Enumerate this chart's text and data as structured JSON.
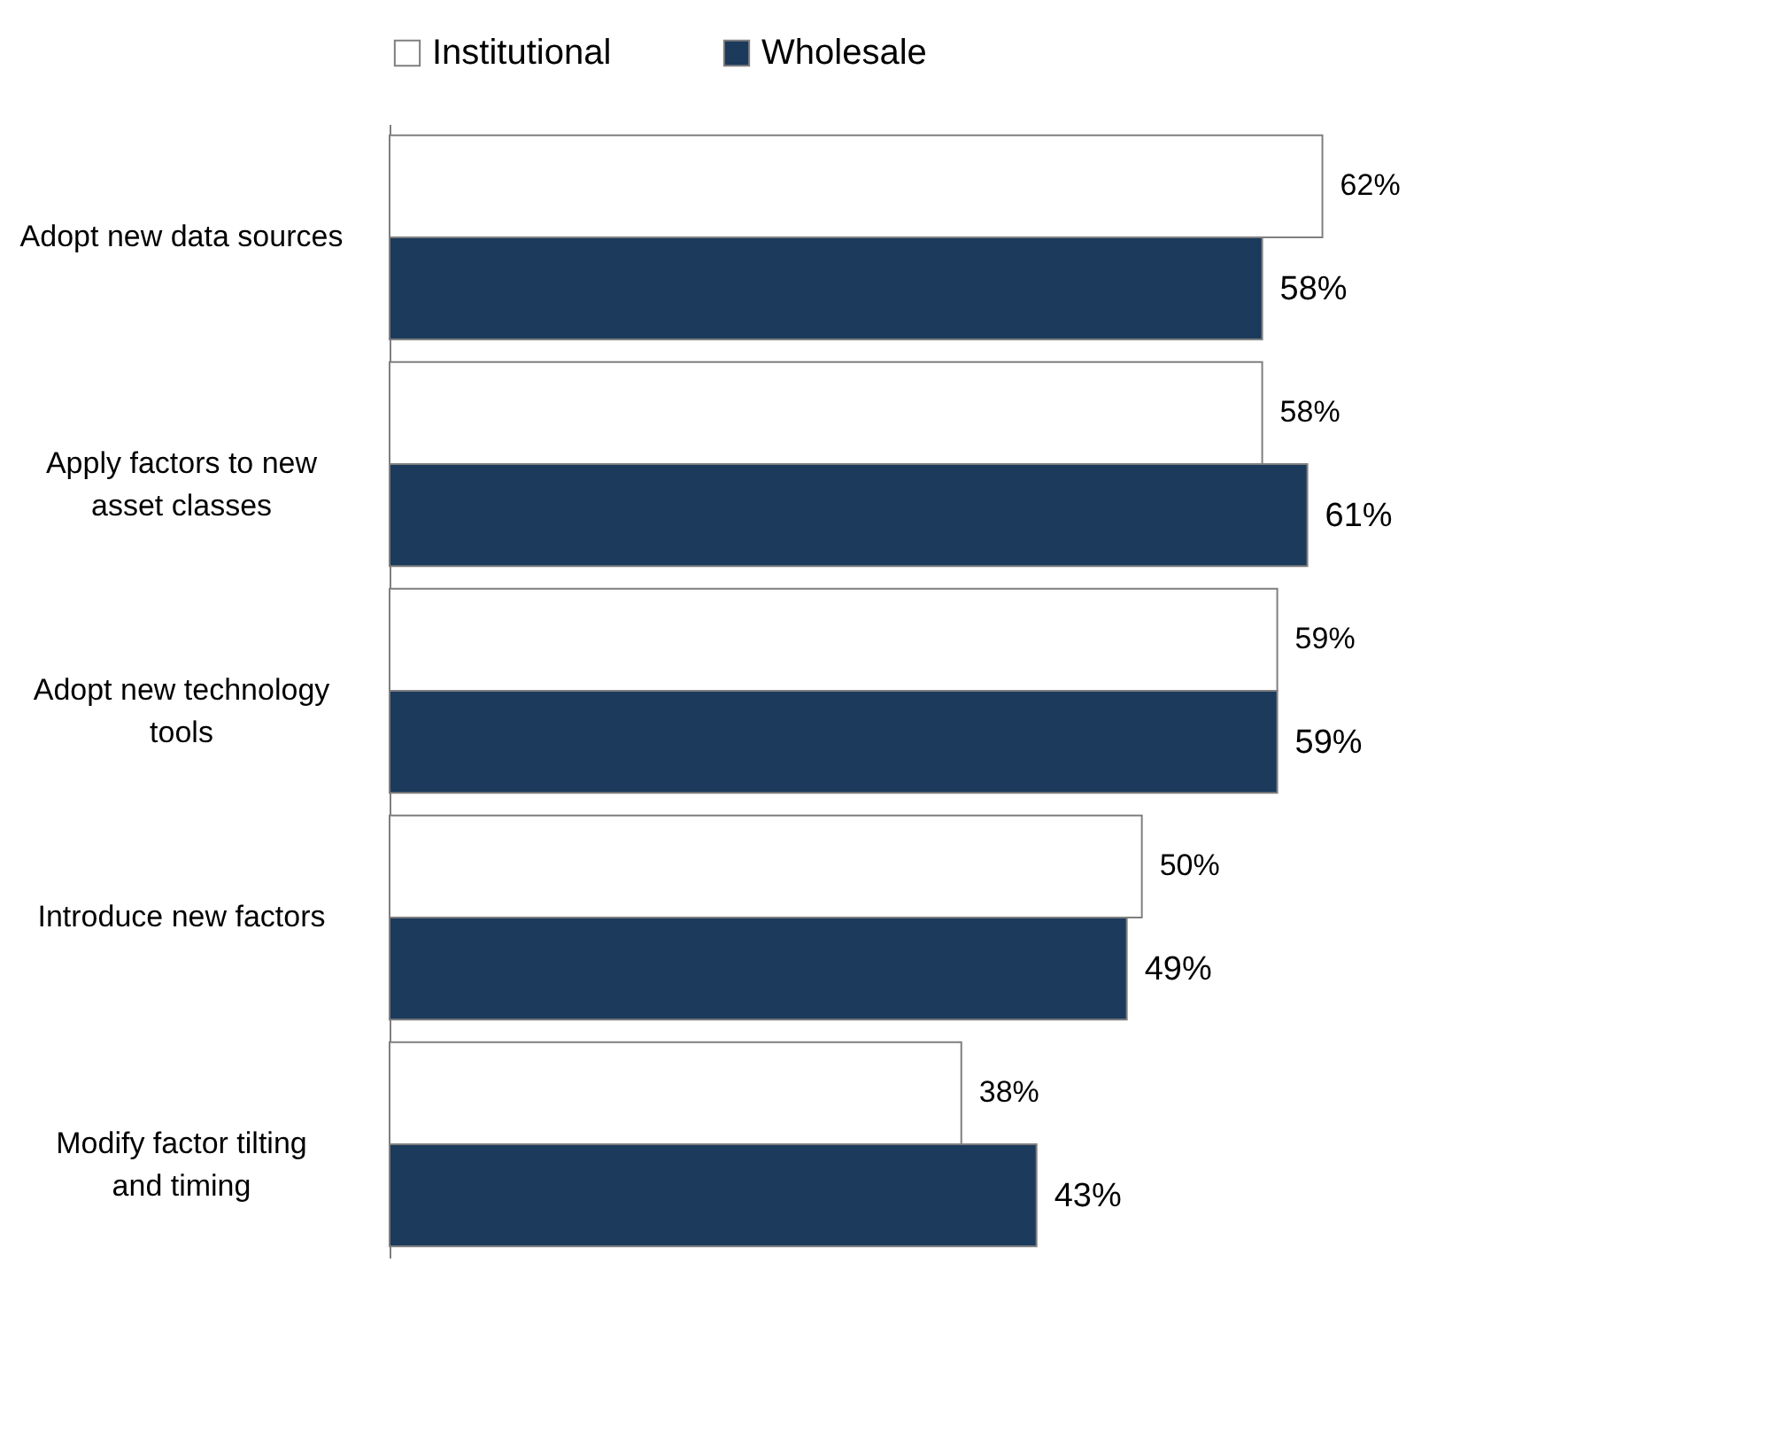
{
  "chart_data": {
    "type": "bar",
    "orientation": "horizontal",
    "legend": "top",
    "categories": [
      "Adopt new data sources",
      "Apply factors to new asset classes",
      "Adopt new technology tools",
      "Introduce new factors",
      "Modify factor tilting and timing"
    ],
    "series": [
      {
        "name": "Institutional",
        "color": "#ffffff",
        "values": [
          62,
          58,
          59,
          50,
          38
        ],
        "value_labels": [
          "62%",
          "58%",
          "59%",
          "50%",
          "38%"
        ]
      },
      {
        "name": "Wholesale",
        "color": "#1b3a5c",
        "values": [
          58,
          61,
          59,
          49,
          43
        ],
        "value_labels": [
          "58%",
          "61%",
          "59%",
          "49%",
          "43%"
        ]
      }
    ]
  }
}
